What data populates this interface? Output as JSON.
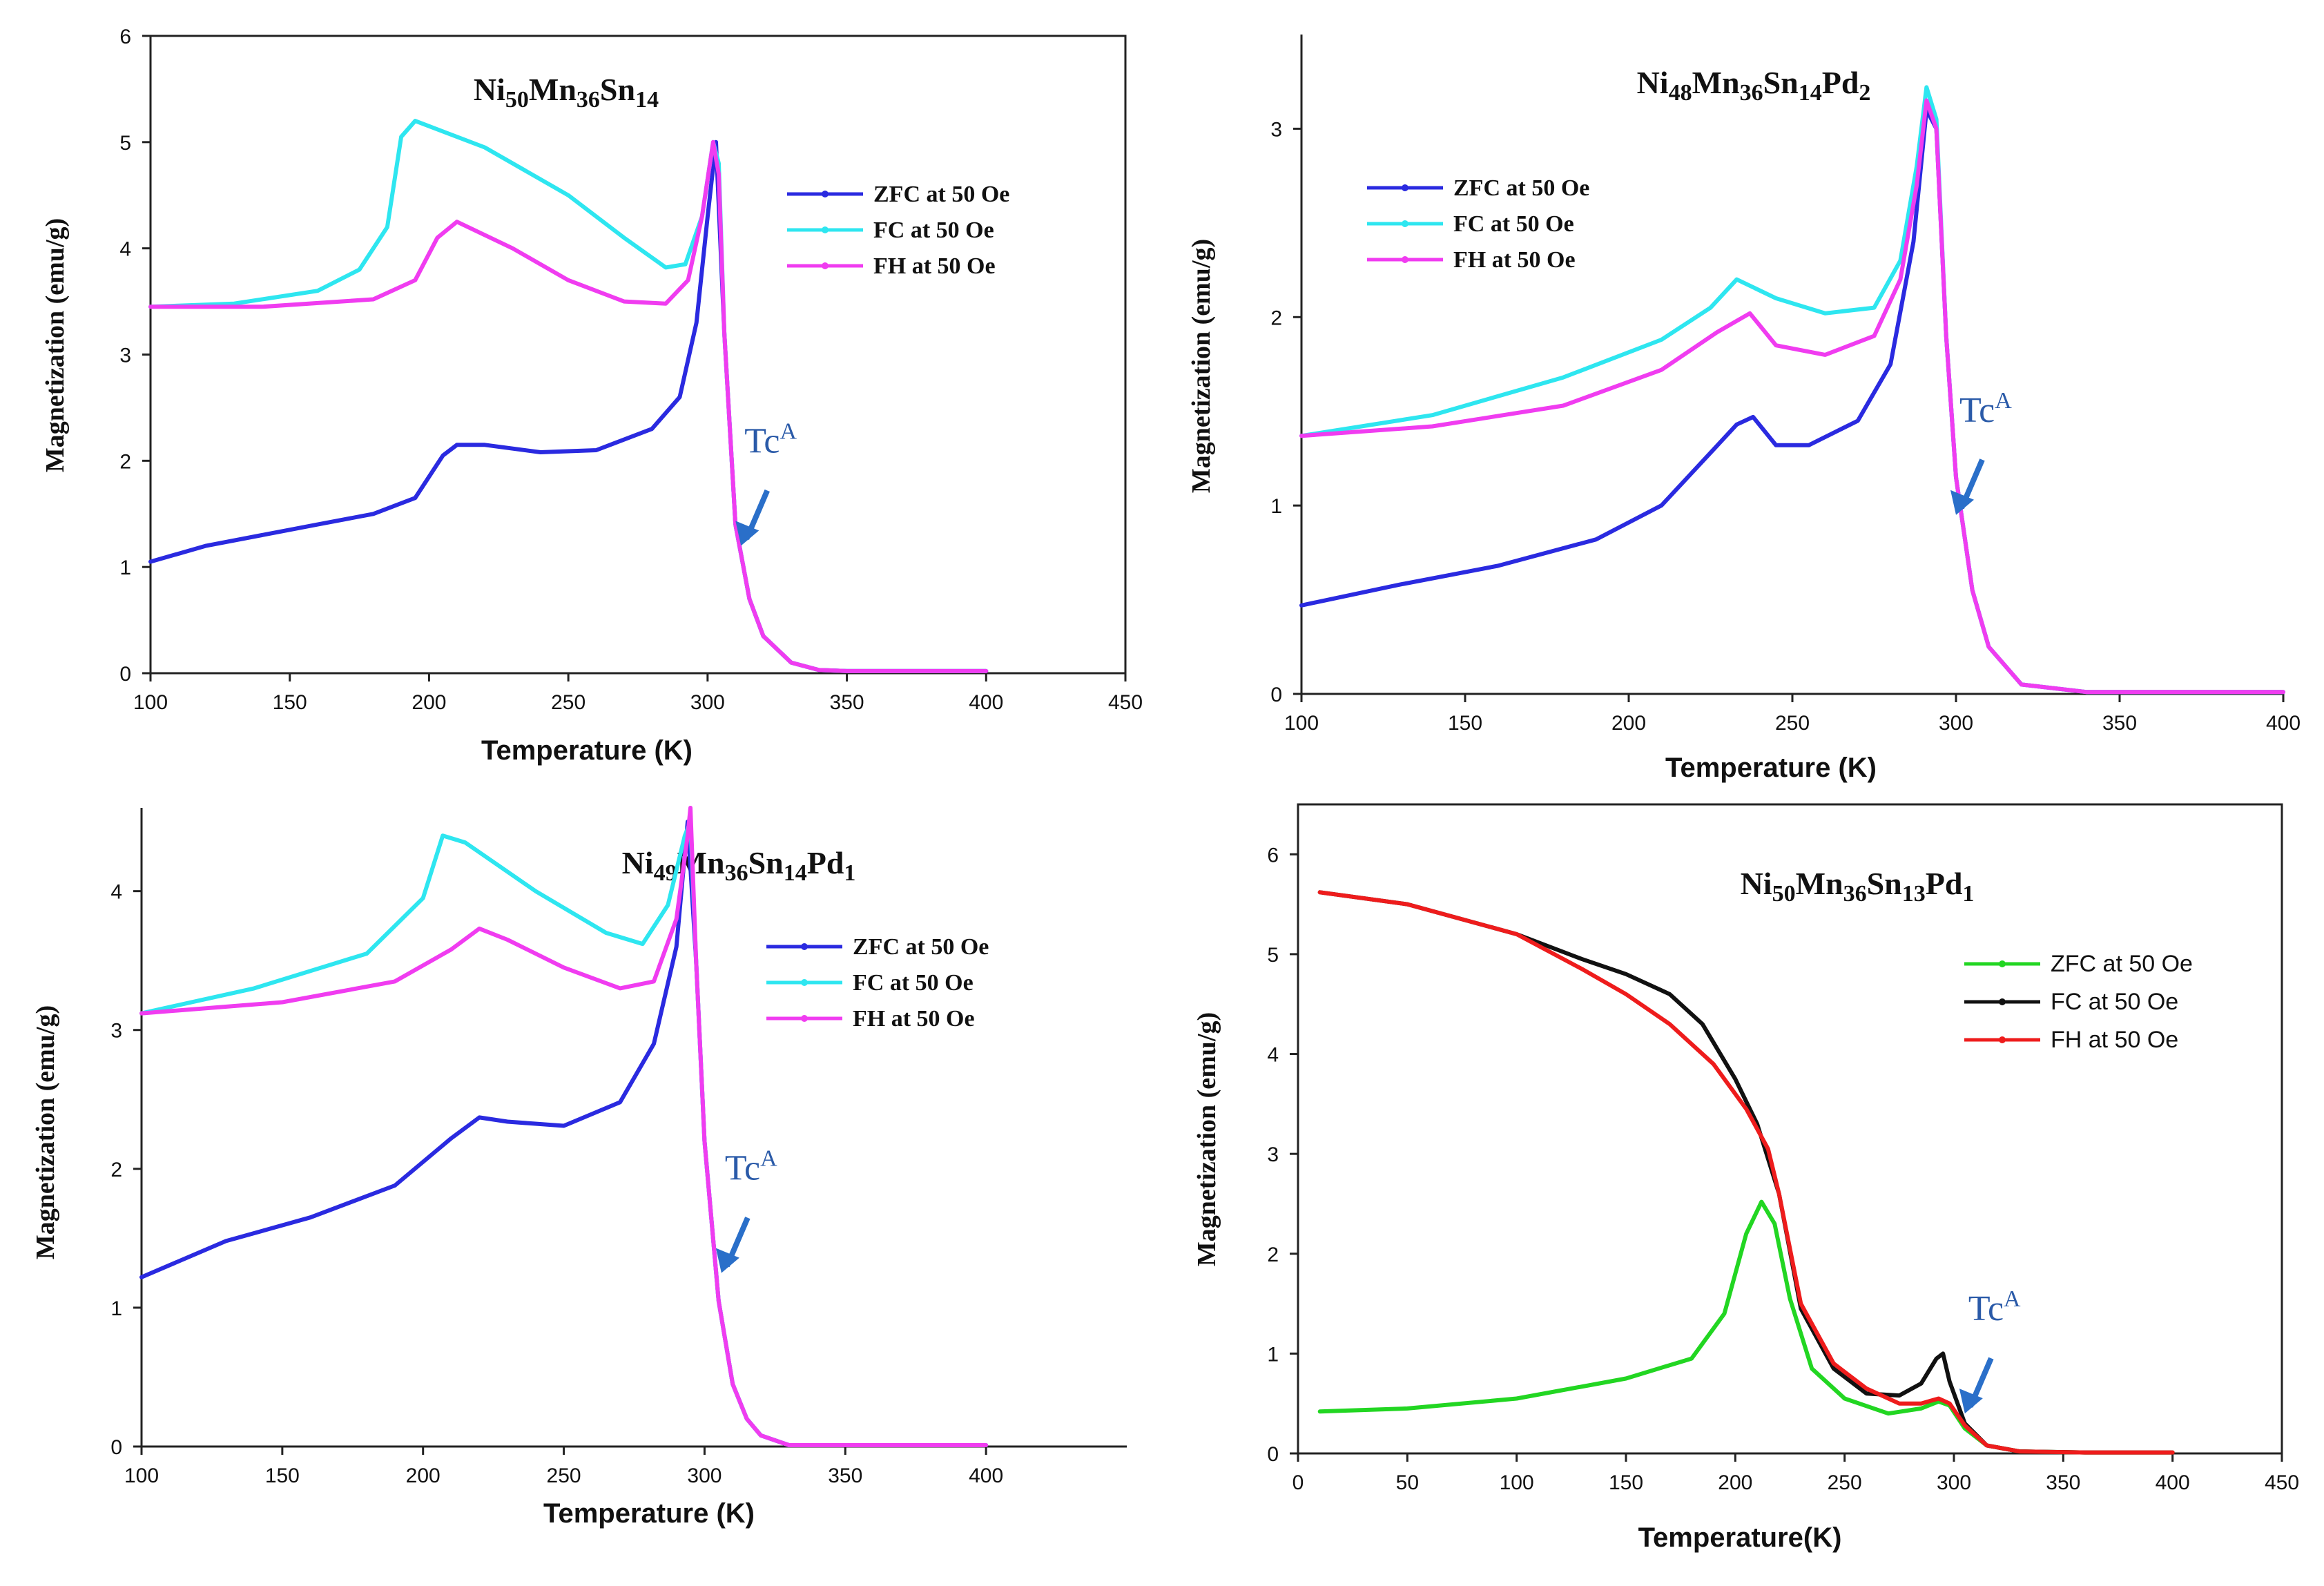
{
  "chart_data": [
    {
      "type": "line",
      "title_parts": [
        [
          "Ni",
          ""
        ],
        [
          "50",
          "sub"
        ],
        [
          "Mn",
          ""
        ],
        [
          "36",
          "sub"
        ],
        [
          "Sn",
          ""
        ],
        [
          "14",
          "sub"
        ]
      ],
      "xlabel": "Temperature (K)",
      "ylabel": "Magnetization (emu/g)",
      "xlim": [
        100,
        450
      ],
      "ylim": [
        0,
        6
      ],
      "xticks": [
        100,
        150,
        200,
        250,
        300,
        350,
        400,
        450
      ],
      "yticks": [
        0,
        1,
        2,
        3,
        4,
        5,
        6
      ],
      "grid": false,
      "legend_position": "center-right",
      "annotation": {
        "text": "Tc",
        "superscript": "A",
        "arrow_to": [
          312,
          1.2
        ]
      },
      "series": [
        {
          "name": "ZFC at 50 Oe",
          "color": "#2a2ae0",
          "x": [
            100,
            120,
            140,
            160,
            180,
            195,
            205,
            210,
            220,
            240,
            260,
            280,
            290,
            296,
            300,
            303,
            306,
            310,
            315,
            320,
            330,
            340,
            350,
            400
          ],
          "y": [
            1.05,
            1.2,
            1.3,
            1.4,
            1.5,
            1.65,
            2.05,
            2.15,
            2.15,
            2.08,
            2.1,
            2.3,
            2.6,
            3.3,
            4.3,
            5.0,
            3.2,
            1.4,
            0.7,
            0.35,
            0.1,
            0.03,
            0.02,
            0.02
          ]
        },
        {
          "name": "FC  at 50 Oe",
          "color": "#2ee6f0",
          "x": [
            100,
            130,
            160,
            175,
            185,
            190,
            195,
            220,
            250,
            270,
            285,
            292,
            298,
            302,
            304,
            306,
            310,
            315,
            320,
            330,
            340,
            350,
            400
          ],
          "y": [
            3.45,
            3.48,
            3.6,
            3.8,
            4.2,
            5.05,
            5.2,
            4.95,
            4.5,
            4.1,
            3.82,
            3.85,
            4.3,
            5.0,
            4.8,
            3.2,
            1.4,
            0.7,
            0.35,
            0.1,
            0.03,
            0.02,
            0.02
          ]
        },
        {
          "name": "FH  at 50 Oe",
          "color": "#f03cf0",
          "x": [
            100,
            140,
            180,
            195,
            203,
            210,
            230,
            250,
            270,
            285,
            293,
            298,
            302,
            304,
            306,
            310,
            315,
            320,
            330,
            340,
            350,
            400
          ],
          "y": [
            3.45,
            3.45,
            3.52,
            3.7,
            4.1,
            4.25,
            4.0,
            3.7,
            3.5,
            3.48,
            3.7,
            4.3,
            5.0,
            4.7,
            3.2,
            1.4,
            0.7,
            0.35,
            0.1,
            0.03,
            0.02,
            0.02
          ]
        }
      ]
    },
    {
      "type": "line",
      "title_parts": [
        [
          "Ni",
          ""
        ],
        [
          "48",
          "sub"
        ],
        [
          "Mn",
          ""
        ],
        [
          "36",
          "sub"
        ],
        [
          "Sn",
          ""
        ],
        [
          "14",
          "sub"
        ],
        [
          "Pd",
          ""
        ],
        [
          "2",
          "sub"
        ]
      ],
      "xlabel": "Temperature (K)",
      "ylabel": "Magnetization (emu/g)",
      "xlim": [
        100,
        400
      ],
      "ylim": [
        0,
        3.5
      ],
      "xticks": [
        100,
        150,
        200,
        250,
        300,
        350,
        400
      ],
      "yticks": [
        0,
        1,
        2,
        3
      ],
      "grid": false,
      "legend_position": "top-left",
      "annotation": {
        "text": "Tc",
        "superscript": "A",
        "arrow_to": [
          300,
          0.95
        ]
      },
      "series": [
        {
          "name": "ZFC at 50 Oe",
          "color": "#2a2ae0",
          "x": [
            100,
            130,
            160,
            190,
            210,
            225,
            233,
            238,
            245,
            255,
            270,
            280,
            287,
            291,
            294,
            297,
            300,
            305,
            310,
            320,
            340,
            400
          ],
          "y": [
            0.47,
            0.58,
            0.68,
            0.82,
            1.0,
            1.28,
            1.43,
            1.47,
            1.32,
            1.32,
            1.45,
            1.75,
            2.4,
            3.1,
            3.0,
            1.9,
            1.15,
            0.55,
            0.25,
            0.05,
            0.01,
            0.01
          ]
        },
        {
          "name": "FC   at 50 Oe",
          "color": "#2ee6f0",
          "x": [
            100,
            140,
            180,
            210,
            225,
            233,
            245,
            260,
            275,
            283,
            288,
            291,
            294,
            297,
            300,
            305,
            310,
            320,
            340,
            400
          ],
          "y": [
            1.37,
            1.48,
            1.68,
            1.88,
            2.05,
            2.2,
            2.1,
            2.02,
            2.05,
            2.3,
            2.8,
            3.22,
            3.05,
            1.9,
            1.15,
            0.55,
            0.25,
            0.05,
            0.01,
            0.01
          ]
        },
        {
          "name": "FH   at 50 Oe",
          "color": "#f03cf0",
          "x": [
            100,
            140,
            180,
            210,
            227,
            237,
            245,
            260,
            275,
            283,
            288,
            291,
            294,
            297,
            300,
            305,
            310,
            320,
            340,
            400
          ],
          "y": [
            1.37,
            1.42,
            1.53,
            1.72,
            1.92,
            2.02,
            1.85,
            1.8,
            1.9,
            2.2,
            2.7,
            3.15,
            3.0,
            1.9,
            1.15,
            0.55,
            0.25,
            0.05,
            0.01,
            0.01
          ]
        }
      ]
    },
    {
      "type": "line",
      "title_parts": [
        [
          "Ni",
          ""
        ],
        [
          "49",
          "sub"
        ],
        [
          "Mn",
          ""
        ],
        [
          "36",
          "sub"
        ],
        [
          "Sn",
          ""
        ],
        [
          "14",
          "sub"
        ],
        [
          "Pd",
          ""
        ],
        [
          "1",
          "sub"
        ]
      ],
      "xlabel": "Temperature (K)",
      "ylabel": "Magnetization (emu/g)",
      "xlim": [
        100,
        450
      ],
      "ylim": [
        0,
        4.6
      ],
      "xticks": [
        100,
        150,
        200,
        250,
        300,
        350,
        400
      ],
      "yticks": [
        0,
        1,
        2,
        3,
        4
      ],
      "grid": false,
      "legend_position": "center-right",
      "annotation": {
        "text": "Tc",
        "superscript": "A",
        "arrow_to": [
          306,
          1.25
        ]
      },
      "series": [
        {
          "name": "ZFC at 50 Oe",
          "color": "#2a2ae0",
          "x": [
            100,
            130,
            160,
            190,
            210,
            220,
            230,
            250,
            270,
            282,
            290,
            294,
            297,
            300,
            305,
            310,
            315,
            320,
            330,
            400
          ],
          "y": [
            1.22,
            1.48,
            1.65,
            1.88,
            2.22,
            2.37,
            2.34,
            2.31,
            2.48,
            2.9,
            3.6,
            4.5,
            3.5,
            2.2,
            1.05,
            0.45,
            0.2,
            0.08,
            0.01,
            0.01
          ]
        },
        {
          "name": "FC  at 50 Oe",
          "color": "#2ee6f0",
          "x": [
            100,
            140,
            180,
            200,
            207,
            215,
            240,
            265,
            278,
            287,
            293,
            295,
            297,
            300,
            305,
            310,
            315,
            320,
            330,
            400
          ],
          "y": [
            3.12,
            3.3,
            3.55,
            3.95,
            4.4,
            4.35,
            4.0,
            3.7,
            3.62,
            3.9,
            4.4,
            4.5,
            3.5,
            2.2,
            1.05,
            0.45,
            0.2,
            0.08,
            0.01,
            0.01
          ]
        },
        {
          "name": "FH  at 50 Oe",
          "color": "#f03cf0",
          "x": [
            100,
            150,
            190,
            210,
            220,
            230,
            250,
            270,
            282,
            290,
            294,
            295,
            297,
            300,
            305,
            310,
            315,
            320,
            330,
            400
          ],
          "y": [
            3.12,
            3.2,
            3.35,
            3.58,
            3.73,
            3.65,
            3.45,
            3.3,
            3.35,
            3.8,
            4.4,
            4.6,
            3.5,
            2.2,
            1.05,
            0.45,
            0.2,
            0.08,
            0.01,
            0.01
          ]
        }
      ]
    },
    {
      "type": "line",
      "title_parts": [
        [
          "Ni",
          ""
        ],
        [
          "50",
          "sub"
        ],
        [
          "Mn",
          ""
        ],
        [
          "36",
          "sub"
        ],
        [
          "Sn",
          ""
        ],
        [
          "13",
          "sub"
        ],
        [
          "Pd",
          ""
        ],
        [
          "1",
          "sub"
        ]
      ],
      "xlabel": "Temperature(K)",
      "ylabel": "Magnetization (emu/g)",
      "xlim": [
        0,
        450
      ],
      "ylim": [
        0,
        6.5
      ],
      "xticks": [
        0,
        50,
        100,
        150,
        200,
        250,
        300,
        350,
        400,
        450
      ],
      "yticks": [
        0,
        1,
        2,
        3,
        4,
        5,
        6
      ],
      "grid": false,
      "legend_position": "center-right",
      "annotation": {
        "text": "Tc",
        "superscript": "A",
        "arrow_to": [
          305,
          0.4
        ]
      },
      "series": [
        {
          "name": "ZFC at 50 Oe",
          "color": "#22d622",
          "x": [
            10,
            50,
            100,
            150,
            180,
            195,
            205,
            212,
            218,
            225,
            235,
            250,
            270,
            285,
            293,
            298,
            305,
            315,
            330,
            360,
            400
          ],
          "y": [
            0.42,
            0.45,
            0.55,
            0.75,
            0.95,
            1.4,
            2.2,
            2.52,
            2.3,
            1.55,
            0.85,
            0.55,
            0.4,
            0.45,
            0.52,
            0.48,
            0.25,
            0.08,
            0.02,
            0.01,
            0.01
          ]
        },
        {
          "name": "FC   at 50 Oe",
          "color": "#111111",
          "x": [
            10,
            50,
            100,
            130,
            150,
            170,
            185,
            200,
            210,
            220,
            230,
            245,
            260,
            275,
            285,
            292,
            295,
            298,
            305,
            315,
            330,
            360,
            400
          ],
          "y": [
            5.62,
            5.5,
            5.2,
            4.95,
            4.8,
            4.6,
            4.3,
            3.75,
            3.3,
            2.6,
            1.45,
            0.85,
            0.6,
            0.58,
            0.7,
            0.95,
            1.0,
            0.72,
            0.3,
            0.08,
            0.02,
            0.01,
            0.01
          ]
        },
        {
          "name": "FH   at 50 Oe",
          "color": "#ee1c1c",
          "x": [
            10,
            50,
            100,
            130,
            150,
            170,
            190,
            205,
            215,
            220,
            230,
            245,
            260,
            275,
            285,
            293,
            298,
            305,
            315,
            330,
            360,
            400
          ],
          "y": [
            5.62,
            5.5,
            5.2,
            4.85,
            4.6,
            4.3,
            3.9,
            3.45,
            3.05,
            2.6,
            1.5,
            0.9,
            0.65,
            0.5,
            0.5,
            0.55,
            0.5,
            0.28,
            0.08,
            0.02,
            0.01,
            0.01
          ]
        }
      ]
    }
  ]
}
